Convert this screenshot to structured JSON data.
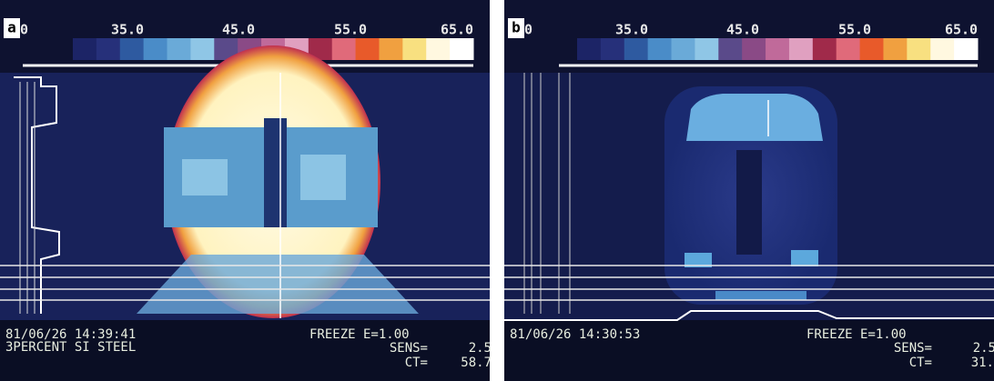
{
  "panels": [
    {
      "label": "a",
      "scale_labels": [
        ".0",
        "35.0",
        "45.0",
        "55.0",
        "65.0"
      ],
      "timestamp": "81/06/26 14:39:41",
      "material": "3PERCENT SI STEEL",
      "freeze": "FREEZE E=1.00",
      "sens_label": "SENS=",
      "sens_value": "2.5",
      "ct_label": "CT=",
      "ct_value": "58.7"
    },
    {
      "label": "b",
      "scale_labels": [
        ".0",
        "35.0",
        "45.0",
        "55.0",
        "65.0"
      ],
      "timestamp": "81/06/26 14:30:53",
      "freeze": "FREEZE E=1.00",
      "sens_label": "SENS=",
      "sens_value": "2.5",
      "ct_label": "CT=",
      "ct_value": "31."
    }
  ]
}
